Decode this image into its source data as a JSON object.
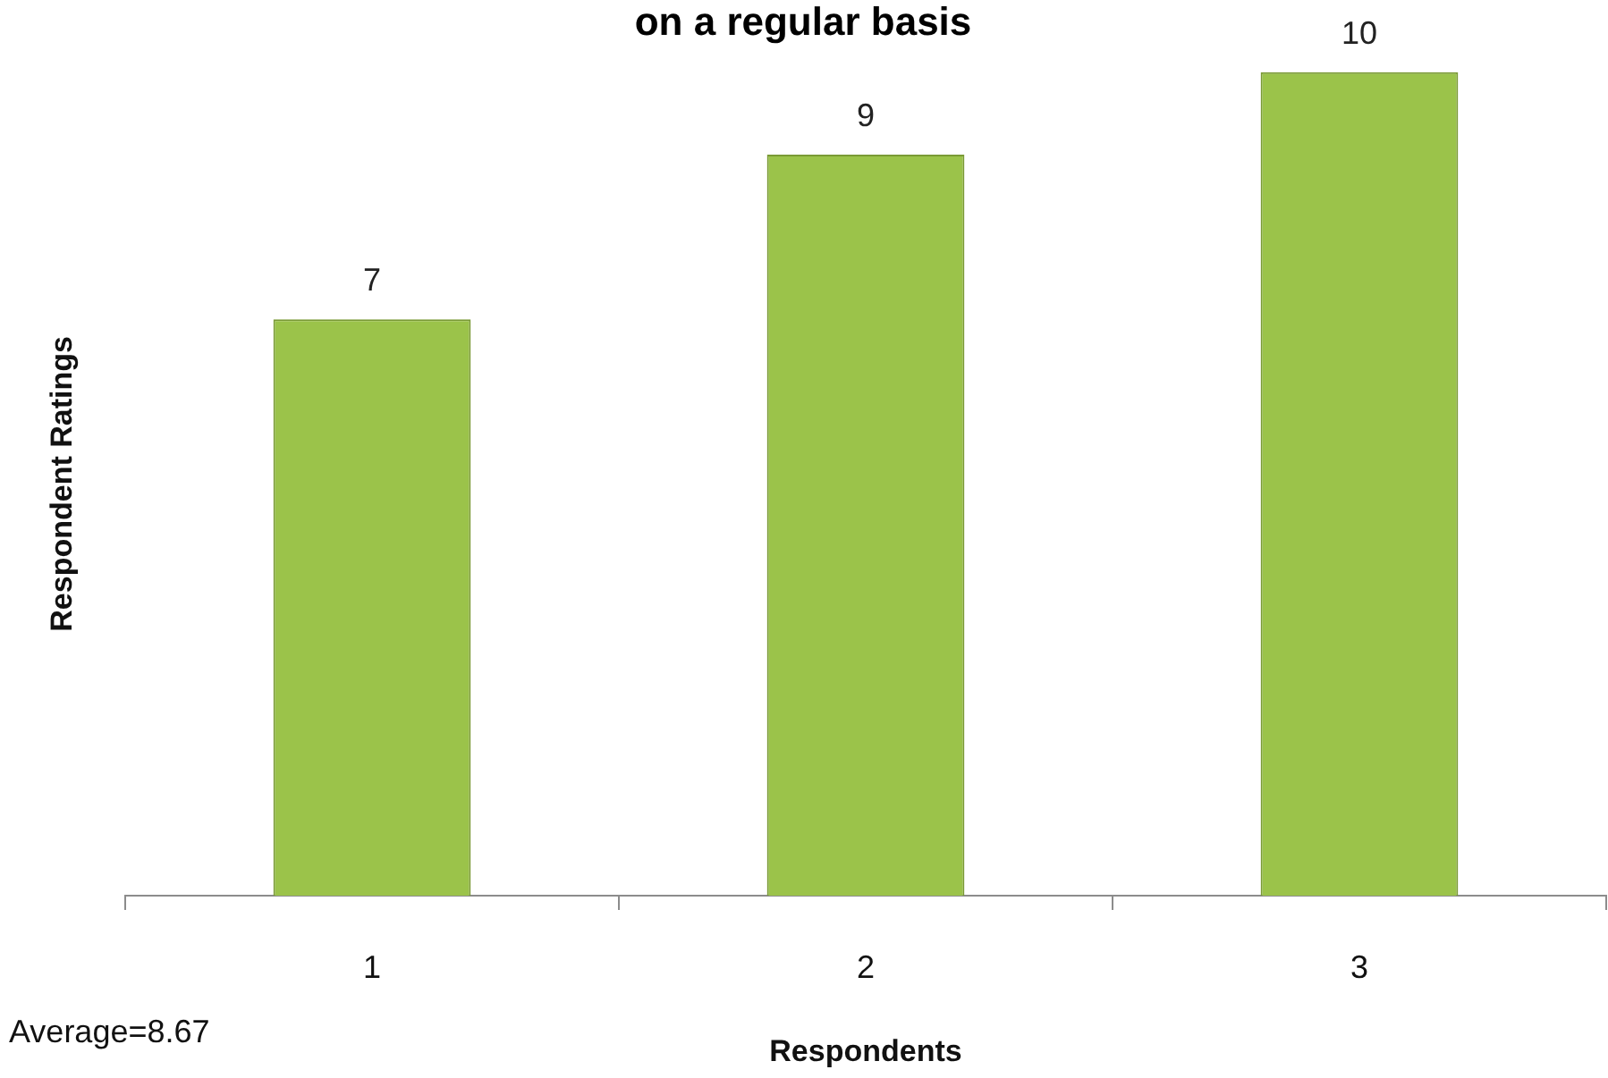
{
  "chart_data": {
    "type": "bar",
    "title": "on a regular basis",
    "xlabel": "Respondents",
    "ylabel": "Respondent Ratings",
    "categories": [
      "1",
      "2",
      "3"
    ],
    "values": [
      7,
      9,
      10
    ],
    "color": "#9bc34a",
    "data_labels": true,
    "annotations": [
      "Average=8.67"
    ]
  }
}
